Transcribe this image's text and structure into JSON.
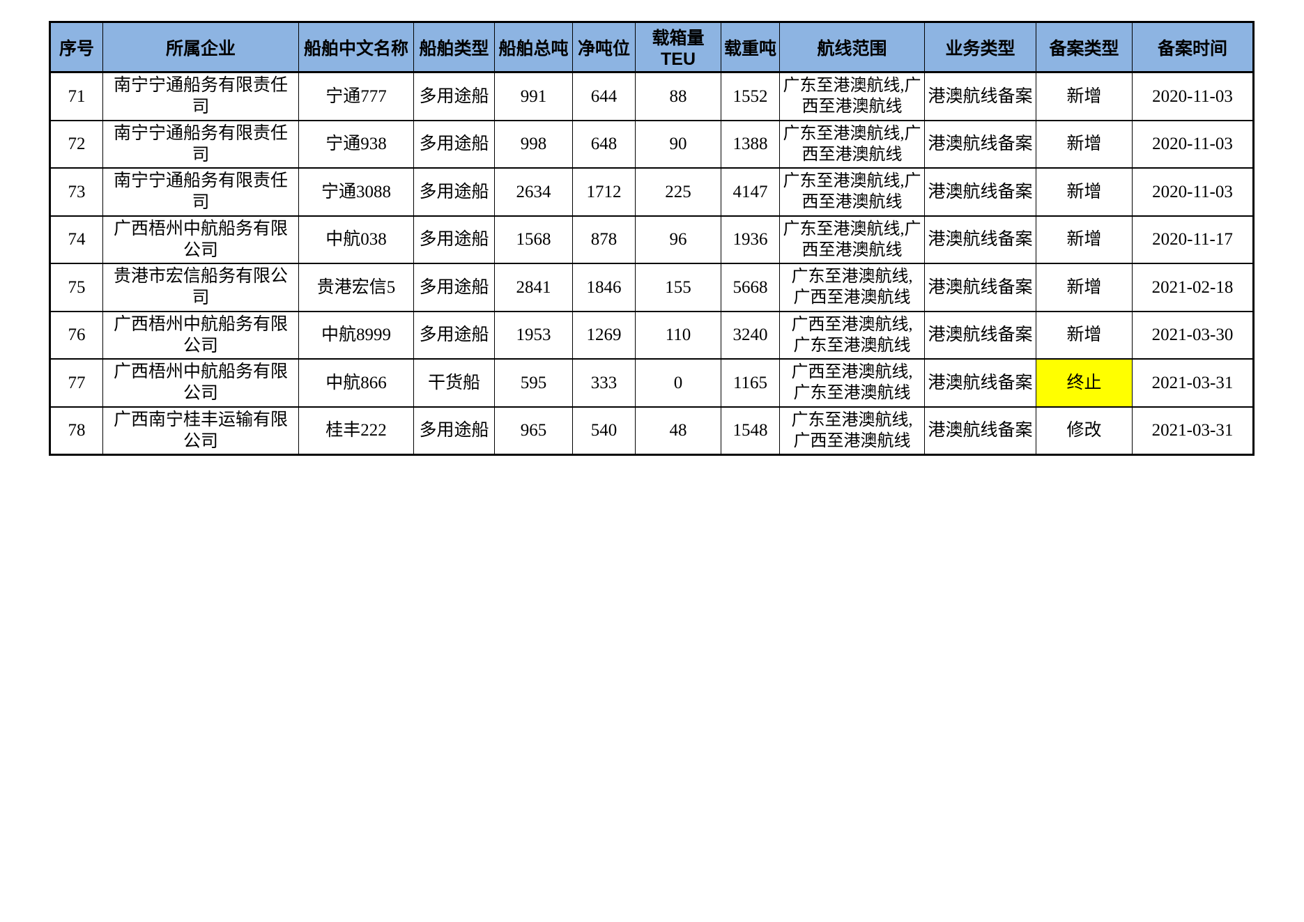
{
  "table": {
    "title_semantic": "港澳航线船舶备案表",
    "columns": [
      {
        "key": "index",
        "label": "序号"
      },
      {
        "key": "company",
        "label": "所属企业"
      },
      {
        "key": "ship_name_cn",
        "label": "船舶中文名称"
      },
      {
        "key": "ship_type",
        "label": "船舶类型"
      },
      {
        "key": "gross_tonnage",
        "label": "船舶总吨"
      },
      {
        "key": "net_tonnage",
        "label": "净吨位"
      },
      {
        "key": "teu_capacity",
        "label": "载箱量TEU"
      },
      {
        "key": "deadweight",
        "label": "载重吨"
      },
      {
        "key": "route_scope",
        "label": "航线范围"
      },
      {
        "key": "business_type",
        "label": "业务类型"
      },
      {
        "key": "filing_type",
        "label": "备案类型"
      },
      {
        "key": "filing_date",
        "label": "备案时间"
      }
    ],
    "rows": [
      [
        "71",
        "南宁宁通船务有限责任司",
        "宁通777",
        "多用途船",
        "991",
        "644",
        "88",
        "1552",
        "广东至港澳航线,广西至港澳航线",
        "港澳航线备案",
        "新增",
        "2020-11-03"
      ],
      [
        "72",
        "南宁宁通船务有限责任司",
        "宁通938",
        "多用途船",
        "998",
        "648",
        "90",
        "1388",
        "广东至港澳航线,广西至港澳航线",
        "港澳航线备案",
        "新增",
        "2020-11-03"
      ],
      [
        "73",
        "南宁宁通船务有限责任司",
        "宁通3088",
        "多用途船",
        "2634",
        "1712",
        "225",
        "4147",
        "广东至港澳航线,广西至港澳航线",
        "港澳航线备案",
        "新增",
        "2020-11-03"
      ],
      [
        "74",
        "广西梧州中航船务有限公司",
        "中航038",
        "多用途船",
        "1568",
        "878",
        "96",
        "1936",
        "广东至港澳航线,广西至港澳航线",
        "港澳航线备案",
        "新增",
        "2020-11-17"
      ],
      [
        "75",
        "贵港市宏信船务有限公司",
        "贵港宏信5",
        "多用途船",
        "2841",
        "1846",
        "155",
        "5668",
        "广东至港澳航线, 广西至港澳航线",
        "港澳航线备案",
        "新增",
        "2021-02-18"
      ],
      [
        "76",
        "广西梧州中航船务有限公司",
        "中航8999",
        "多用途船",
        "1953",
        "1269",
        "110",
        "3240",
        "广西至港澳航线, 广东至港澳航线",
        "港澳航线备案",
        "新增",
        "2021-03-30"
      ],
      [
        "77",
        "广西梧州中航船务有限公司",
        "中航866",
        "干货船",
        "595",
        "333",
        "0",
        "1165",
        "广西至港澳航线, 广东至港澳航线",
        "港澳航线备案",
        "终止",
        "2021-03-31"
      ],
      [
        "78",
        "广西南宁桂丰运输有限公司",
        "桂丰222",
        "多用途船",
        "965",
        "540",
        "48",
        "1548",
        "广东至港澳航线, 广西至港澳航线",
        "港澳航线备案",
        "修改",
        "2021-03-31"
      ]
    ],
    "highlight": {
      "row": 6,
      "col": 10,
      "color": "#FFFF00"
    }
  },
  "colors": {
    "header_bg": "#8DB4E2",
    "border": "#000000",
    "page_bg": "#FFFFFF",
    "highlight": "#FFFF00"
  }
}
